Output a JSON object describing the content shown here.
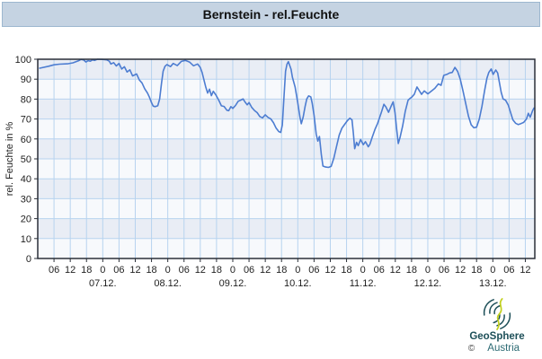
{
  "window": {
    "title": "Bernstein - rel.Feuchte"
  },
  "chart_data": {
    "type": "line",
    "title": "Bernstein - rel.Feuchte",
    "xlabel": "",
    "ylabel": "rel. Feuchte in %",
    "ylim": [
      0,
      100
    ],
    "y_ticks": [
      0,
      10,
      20,
      30,
      40,
      50,
      60,
      70,
      80,
      90,
      100
    ],
    "x_domain_hours": [
      0,
      183.5
    ],
    "x_hour_ticks": [
      [
        6,
        "06"
      ],
      [
        12,
        "12"
      ],
      [
        18,
        "18"
      ],
      [
        24,
        "0"
      ],
      [
        30,
        "06"
      ],
      [
        36,
        "12"
      ],
      [
        42,
        "18"
      ],
      [
        48,
        "0"
      ],
      [
        54,
        "06"
      ],
      [
        60,
        "12"
      ],
      [
        66,
        "18"
      ],
      [
        72,
        "0"
      ],
      [
        78,
        "06"
      ],
      [
        84,
        "12"
      ],
      [
        90,
        "18"
      ],
      [
        96,
        "0"
      ],
      [
        102,
        "06"
      ],
      [
        108,
        "12"
      ],
      [
        114,
        "18"
      ],
      [
        120,
        "0"
      ],
      [
        126,
        "06"
      ],
      [
        132,
        "12"
      ],
      [
        138,
        "18"
      ],
      [
        144,
        "0"
      ],
      [
        150,
        "06"
      ],
      [
        156,
        "12"
      ],
      [
        162,
        "18"
      ],
      [
        168,
        "0"
      ],
      [
        174,
        "06"
      ],
      [
        180,
        "12"
      ]
    ],
    "x_date_ticks": [
      [
        24,
        "07.12."
      ],
      [
        48,
        "08.12."
      ],
      [
        72,
        "09.12."
      ],
      [
        96,
        "10.12."
      ],
      [
        120,
        "11.12."
      ],
      [
        144,
        "12.12."
      ],
      [
        168,
        "13.12."
      ]
    ],
    "grid": true,
    "legend_position": "none",
    "colors": {
      "line": "#4d7dd1",
      "grid": "#b7d3ef",
      "band_dark": "#e9edf5",
      "band_light": "#f7f9fc",
      "frame": "#2a2f38",
      "axis_text": "#1f1f1f",
      "title_bar_bg": "#c5d3e2",
      "title_bar_border": "#9db7cf"
    },
    "series": [
      {
        "name": "rel. Feuchte in %",
        "points": [
          [
            0.7,
            95.5
          ],
          [
            4,
            96.5
          ],
          [
            6,
            97.2
          ],
          [
            8,
            97.5
          ],
          [
            11,
            97.7
          ],
          [
            13,
            98.2
          ],
          [
            15,
            99.2
          ],
          [
            16,
            99.9
          ],
          [
            17,
            99.6
          ],
          [
            17.8,
            98.6
          ],
          [
            18.6,
            99.3
          ],
          [
            19.4,
            99.0
          ],
          [
            20.2,
            99.7
          ],
          [
            21,
            99.4
          ],
          [
            22,
            100
          ],
          [
            24,
            99.9
          ],
          [
            25.5,
            99.7
          ],
          [
            26.4,
            99.0
          ],
          [
            27,
            97.6
          ],
          [
            28,
            98.3
          ],
          [
            29,
            96.6
          ],
          [
            30,
            97.9
          ],
          [
            31,
            95.1
          ],
          [
            32,
            96.2
          ],
          [
            33,
            93.6
          ],
          [
            34,
            94.7
          ],
          [
            35,
            91.6
          ],
          [
            36.5,
            92.6
          ],
          [
            37.5,
            89.6
          ],
          [
            38.5,
            88.1
          ],
          [
            39.5,
            85.2
          ],
          [
            40.5,
            83.0
          ],
          [
            41.2,
            81.0
          ],
          [
            42,
            78.2
          ],
          [
            42.6,
            76.5
          ],
          [
            43.3,
            76.2
          ],
          [
            44.3,
            76.6
          ],
          [
            45,
            80.0
          ],
          [
            45.7,
            88.0
          ],
          [
            46.3,
            94.0
          ],
          [
            47,
            96.5
          ],
          [
            47.7,
            97.3
          ],
          [
            49,
            96.3
          ],
          [
            50,
            97.9
          ],
          [
            51.5,
            96.8
          ],
          [
            53,
            98.9
          ],
          [
            54.5,
            99.4
          ],
          [
            56,
            98.6
          ],
          [
            57.5,
            96.7
          ],
          [
            59,
            97.6
          ],
          [
            60,
            95.9
          ],
          [
            60.7,
            93.3
          ],
          [
            61.3,
            90.0
          ],
          [
            62,
            86.2
          ],
          [
            62.7,
            83.0
          ],
          [
            63.4,
            85.0
          ],
          [
            64.1,
            81.7
          ],
          [
            64.8,
            83.9
          ],
          [
            65.8,
            82.0
          ],
          [
            66.8,
            79.5
          ],
          [
            67.8,
            76.6
          ],
          [
            68.8,
            76.3
          ],
          [
            69.8,
            74.4
          ],
          [
            70.5,
            74.2
          ],
          [
            71.3,
            76.2
          ],
          [
            72,
            75.3
          ],
          [
            73,
            76.8
          ],
          [
            74,
            78.9
          ],
          [
            75,
            79.5
          ],
          [
            75.8,
            80.1
          ],
          [
            76.5,
            78.6
          ],
          [
            77.3,
            77.1
          ],
          [
            78,
            78.3
          ],
          [
            79,
            75.8
          ],
          [
            80,
            74.3
          ],
          [
            81,
            73.2
          ],
          [
            82,
            71.2
          ],
          [
            83,
            70.6
          ],
          [
            84,
            72.1
          ],
          [
            85,
            70.8
          ],
          [
            86,
            70.1
          ],
          [
            87,
            68.2
          ],
          [
            88,
            65.4
          ],
          [
            89,
            63.7
          ],
          [
            89.7,
            63.3
          ],
          [
            90.3,
            67.0
          ],
          [
            91,
            83.0
          ],
          [
            91.5,
            94.0
          ],
          [
            92,
            97.5
          ],
          [
            92.5,
            98.8
          ],
          [
            93.5,
            95.0
          ],
          [
            94,
            91.0
          ],
          [
            95,
            86.1
          ],
          [
            96,
            78.0
          ],
          [
            96.8,
            71.0
          ],
          [
            97.3,
            67.6
          ],
          [
            98,
            71.0
          ],
          [
            98.7,
            76.2
          ],
          [
            99.3,
            80.1
          ],
          [
            100,
            81.6
          ],
          [
            100.8,
            81.1
          ],
          [
            101.3,
            78.0
          ],
          [
            102,
            71.9
          ],
          [
            102.8,
            62.4
          ],
          [
            103.4,
            58.9
          ],
          [
            104,
            61.2
          ],
          [
            104.7,
            52.1
          ],
          [
            105.3,
            46.4
          ],
          [
            106.3,
            45.9
          ],
          [
            107.3,
            45.7
          ],
          [
            108.3,
            46.2
          ],
          [
            109.3,
            50.3
          ],
          [
            110.3,
            56.2
          ],
          [
            111.3,
            62.0
          ],
          [
            112.3,
            65.4
          ],
          [
            113.3,
            67.3
          ],
          [
            114.3,
            69.2
          ],
          [
            115.2,
            70.4
          ],
          [
            116,
            69.6
          ],
          [
            116.5,
            63.0
          ],
          [
            117,
            55.1
          ],
          [
            117.7,
            58.3
          ],
          [
            118.3,
            56.6
          ],
          [
            119.2,
            59.7
          ],
          [
            120.2,
            57.1
          ],
          [
            121,
            58.6
          ],
          [
            122,
            56.1
          ],
          [
            122.6,
            57.3
          ],
          [
            123.5,
            61.0
          ],
          [
            124.5,
            64.8
          ],
          [
            125.5,
            67.9
          ],
          [
            126.8,
            73.1
          ],
          [
            127.8,
            77.4
          ],
          [
            128.5,
            76.1
          ],
          [
            129.5,
            73.4
          ],
          [
            130.5,
            76.6
          ],
          [
            131.2,
            78.6
          ],
          [
            131.9,
            73.0
          ],
          [
            132.5,
            64.9
          ],
          [
            133.1,
            57.7
          ],
          [
            133.8,
            61.0
          ],
          [
            134.7,
            66.4
          ],
          [
            135.7,
            73.9
          ],
          [
            136.7,
            79.4
          ],
          [
            137.4,
            80.3
          ],
          [
            138,
            80.9
          ],
          [
            139,
            82.4
          ],
          [
            140,
            86.1
          ],
          [
            141,
            83.9
          ],
          [
            141.7,
            82.4
          ],
          [
            142.7,
            84.1
          ],
          [
            144,
            82.6
          ],
          [
            145,
            83.7
          ],
          [
            146.6,
            85.4
          ],
          [
            147.9,
            87.6
          ],
          [
            148.9,
            86.9
          ],
          [
            149.9,
            91.9
          ],
          [
            151,
            92.4
          ],
          [
            152,
            93.1
          ],
          [
            153,
            93.4
          ],
          [
            154,
            95.9
          ],
          [
            155,
            93.9
          ],
          [
            156,
            89.9
          ],
          [
            157,
            84.1
          ],
          [
            158,
            77.6
          ],
          [
            159,
            71.4
          ],
          [
            160,
            67.1
          ],
          [
            161,
            65.6
          ],
          [
            162,
            65.9
          ],
          [
            163,
            69.9
          ],
          [
            164,
            76.4
          ],
          [
            165,
            84.4
          ],
          [
            165.8,
            90.4
          ],
          [
            166.5,
            93.4
          ],
          [
            167.4,
            95.1
          ],
          [
            168.1,
            92.4
          ],
          [
            169.1,
            94.6
          ],
          [
            169.8,
            93.1
          ],
          [
            170.4,
            88.6
          ],
          [
            171.1,
            83.4
          ],
          [
            171.8,
            80.1
          ],
          [
            172.7,
            79.4
          ],
          [
            173.7,
            77.0
          ],
          [
            174.4,
            73.9
          ],
          [
            175.4,
            69.6
          ],
          [
            176.4,
            67.9
          ],
          [
            177.4,
            67.2
          ],
          [
            178.4,
            67.7
          ],
          [
            179.4,
            68.3
          ],
          [
            180.4,
            70.0
          ],
          [
            181.1,
            72.9
          ],
          [
            181.8,
            70.9
          ],
          [
            182.7,
            74.3
          ],
          [
            183.2,
            75.5
          ]
        ]
      }
    ]
  },
  "logo": {
    "brand": "GeoSphere",
    "country": "Austria",
    "copyright": "©"
  }
}
